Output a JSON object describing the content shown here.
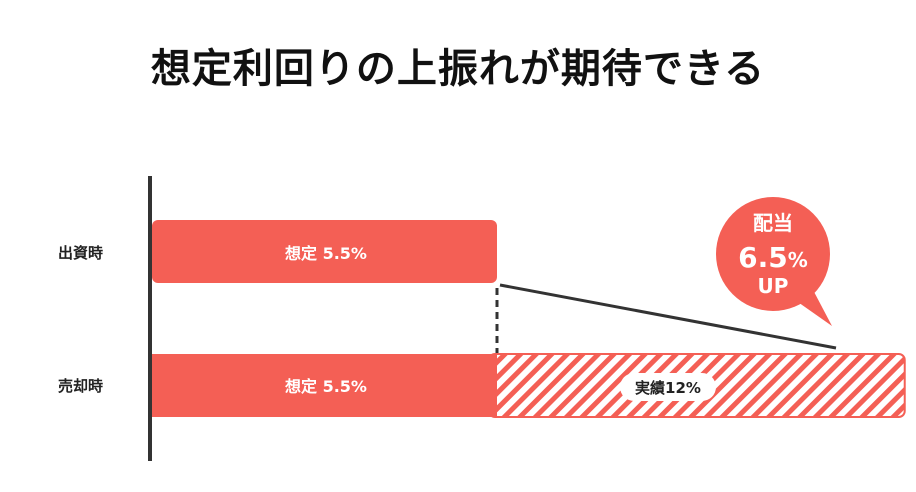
{
  "title": "想定利回りの上振れが期待できる",
  "colors": {
    "bar": "#f45f55",
    "axis": "#333333",
    "text": "#222222",
    "hatch_bg": "#ffffff"
  },
  "chart_data": {
    "type": "bar",
    "orientation": "horizontal",
    "categories": [
      "出資時",
      "売却時"
    ],
    "series": [
      {
        "values": [
          5.5,
          5.5
        ],
        "labels": [
          "想定 5.5%",
          "想定 5.5%"
        ]
      },
      {
        "values": [
          0,
          6.5
        ],
        "labels": [
          "",
          "実績12%"
        ],
        "pattern": "hatched"
      }
    ],
    "callout": {
      "line1": "配当",
      "line2_value": "6.5",
      "line2_unit": "%",
      "line3": "UP"
    }
  }
}
